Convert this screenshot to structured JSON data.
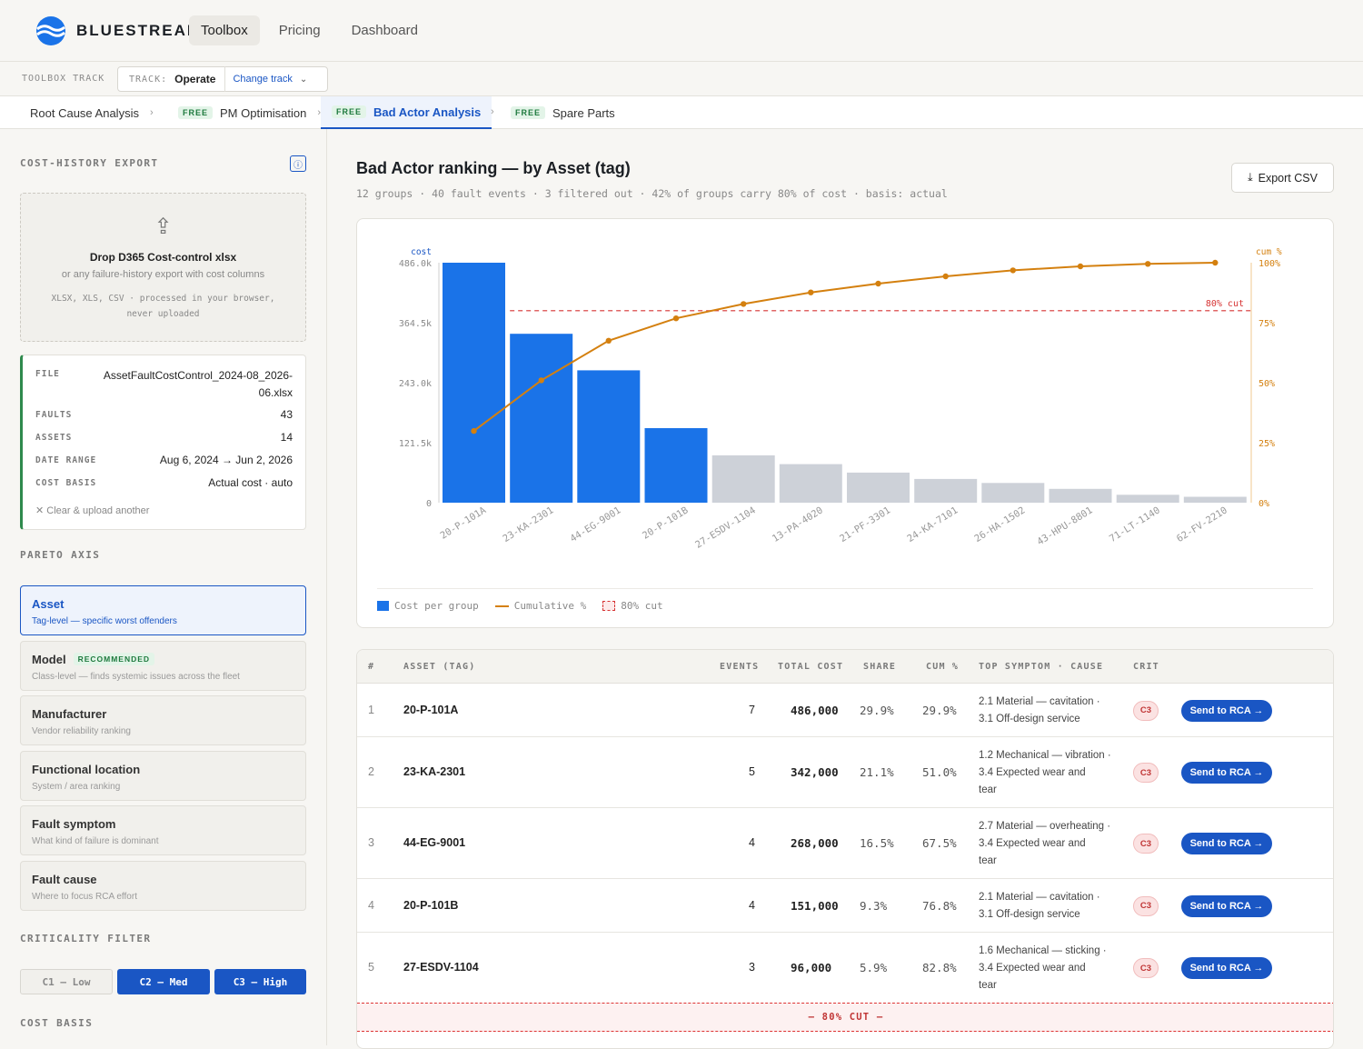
{
  "brand": {
    "name": "Bluestream"
  },
  "nav": {
    "items": [
      "Toolbox",
      "Pricing",
      "Dashboard"
    ],
    "active": "Toolbox"
  },
  "trackbar": {
    "label": "TOOLBOX TRACK",
    "track_key": "TRACK:",
    "track_value": "Operate",
    "change_label": "Change track"
  },
  "tabs": [
    {
      "label": "Root Cause Analysis",
      "free": false
    },
    {
      "label": "PM Optimisation",
      "free": true
    },
    {
      "label": "Bad Actor Analysis",
      "free": true,
      "active": true
    },
    {
      "label": "Spare Parts",
      "free": true
    }
  ],
  "free_badge": "FREE",
  "sidebar": {
    "cost_history_title": "COST-HISTORY EXPORT",
    "dropzone": {
      "title": "Drop D365 Cost-control xlsx",
      "subtitle": "or any failure-history export with cost columns",
      "note": "XLSX, XLS, CSV · processed in your browser, never uploaded"
    },
    "file": {
      "file_label": "FILE",
      "file_value": "AssetFaultCostControl_2024-08_2026-06.xlsx",
      "faults_label": "FAULTS",
      "faults_value": "43",
      "assets_label": "ASSETS",
      "assets_value": "14",
      "range_label": "DATE RANGE",
      "range_value": "Aug 6, 2024 → Jun 2, 2026",
      "basis_label": "COST BASIS",
      "basis_value": "Actual cost · auto",
      "clear_label": "Clear & upload another"
    },
    "pareto_title": "PARETO AXIS",
    "axis_options": [
      {
        "title": "Asset",
        "desc": "Tag-level — specific worst offenders",
        "selected": true
      },
      {
        "title": "Model",
        "desc": "Class-level — finds systemic issues across the fleet",
        "badge": "RECOMMENDED"
      },
      {
        "title": "Manufacturer",
        "desc": "Vendor reliability ranking"
      },
      {
        "title": "Functional location",
        "desc": "System / area ranking"
      },
      {
        "title": "Fault symptom",
        "desc": "What kind of failure is dominant"
      },
      {
        "title": "Fault cause",
        "desc": "Where to focus RCA effort"
      }
    ],
    "criticality_title": "CRITICALITY FILTER",
    "criticality": [
      {
        "label": "C1 — Low",
        "active": false
      },
      {
        "label": "C2 — Med",
        "active": true
      },
      {
        "label": "C3 — High",
        "active": true
      }
    ],
    "cost_basis_title": "COST BASIS"
  },
  "main": {
    "title": "Bad Actor ranking — by Asset (tag)",
    "subtitle": "12 groups · 40 fault events · 3 filtered out · 42% of groups carry 80% of cost · basis: actual",
    "export_label": "Export CSV"
  },
  "chart_data": {
    "type": "bar",
    "categories": [
      "20-P-101A",
      "23-KA-2301",
      "44-EG-9001",
      "20-P-101B",
      "27-ESDV-1104",
      "13-PA-4020",
      "21-PF-3301",
      "24-KA-7101",
      "26-HA-1502",
      "43-HPU-8801",
      "71-LT-1140",
      "62-FV-2210"
    ],
    "series": [
      {
        "name": "Cost per group",
        "type": "bar",
        "values": [
          486000,
          342000,
          268000,
          151000,
          96000,
          78000,
          61000,
          48000,
          40000,
          28000,
          16000,
          12000
        ]
      },
      {
        "name": "Cumulative %",
        "type": "line",
        "values": [
          29.9,
          51.0,
          67.5,
          76.8,
          82.8,
          87.6,
          91.3,
          94.3,
          96.8,
          98.5,
          99.5,
          100.0
        ]
      }
    ],
    "highlight_count": 4,
    "y_left": {
      "label": "cost",
      "ticks": [
        "0",
        "121.5k",
        "243.0k",
        "364.5k",
        "486.0k"
      ],
      "max": 486000
    },
    "y_right": {
      "label": "cum %",
      "ticks": [
        "0%",
        "25%",
        "50%",
        "75%",
        "100%"
      ],
      "max": 100
    },
    "cut_line": {
      "value": 80,
      "label": "80% cut"
    },
    "legend": [
      "Cost per group",
      "Cumulative %",
      "80% cut"
    ],
    "colors": {
      "highlight": "#1a73e8",
      "rest": "#cdd1d8",
      "line": "#d4800f",
      "cut": "#d63333"
    }
  },
  "table": {
    "headers": [
      "#",
      "ASSET (TAG)",
      "EVENTS",
      "TOTAL COST",
      "SHARE",
      "CUM %",
      "TOP SYMPTOM · CAUSE",
      "CRIT"
    ],
    "rows": [
      {
        "rank": "1",
        "tag": "20-P-101A",
        "events": "7",
        "cost": "486,000",
        "share": "29.9%",
        "cum": "29.9%",
        "cause": [
          "2.1 Material — cavitation ·",
          "3.1 Off-design service"
        ],
        "crit": "C3"
      },
      {
        "rank": "2",
        "tag": "23-KA-2301",
        "events": "5",
        "cost": "342,000",
        "share": "21.1%",
        "cum": "51.0%",
        "cause": [
          "1.2 Mechanical — vibration ·",
          "3.4 Expected wear and",
          "tear"
        ],
        "crit": "C3"
      },
      {
        "rank": "3",
        "tag": "44-EG-9001",
        "events": "4",
        "cost": "268,000",
        "share": "16.5%",
        "cum": "67.5%",
        "cause": [
          "2.7 Material — overheating ·",
          "3.4 Expected wear and",
          "tear"
        ],
        "crit": "C3"
      },
      {
        "rank": "4",
        "tag": "20-P-101B",
        "events": "4",
        "cost": "151,000",
        "share": "9.3%",
        "cum": "76.8%",
        "cause": [
          "2.1 Material — cavitation ·",
          "3.1 Off-design service"
        ],
        "crit": "C3"
      },
      {
        "rank": "5",
        "tag": "27-ESDV-1104",
        "events": "3",
        "cost": "96,000",
        "share": "5.9%",
        "cum": "82.8%",
        "cause": [
          "1.6 Mechanical — sticking ·",
          "3.4 Expected wear and",
          "tear"
        ],
        "crit": "C3"
      }
    ],
    "action_label": "Send to RCA →",
    "cut_label": "— 80% CUT —"
  }
}
